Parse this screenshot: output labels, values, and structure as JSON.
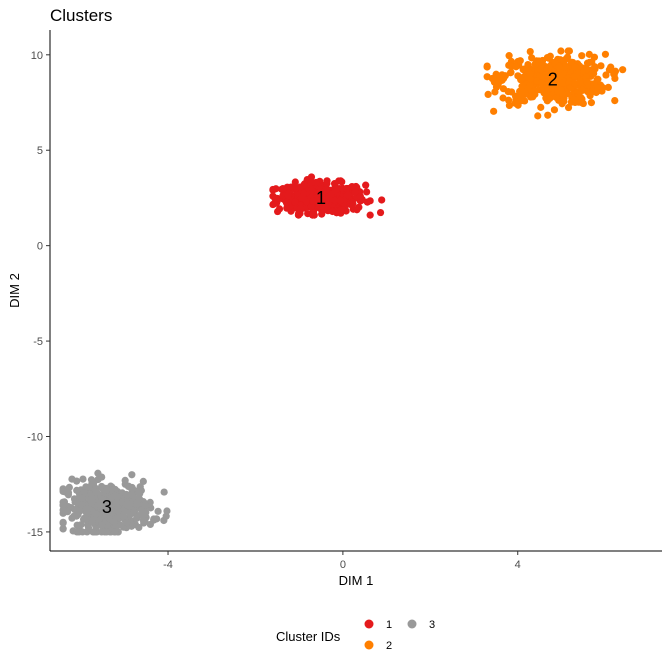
{
  "chart_data": {
    "type": "scatter",
    "title": "Clusters",
    "xlabel": "DIM 1",
    "ylabel": "DIM 2",
    "xlim": [
      -6.7,
      7.3
    ],
    "ylim": [
      -16.0,
      11.3
    ],
    "x_ticks": [
      -4,
      0,
      4
    ],
    "x_tick_labels": [
      "-4",
      "0",
      "4"
    ],
    "y_ticks": [
      -15,
      -10,
      -5,
      0,
      5,
      10
    ],
    "y_tick_labels": [
      "-15",
      "-10",
      "-5",
      "0",
      "5",
      "10"
    ],
    "grid": false,
    "legend": {
      "title": "Cluster IDs",
      "position": "bottom"
    },
    "series": [
      {
        "name": "1",
        "color": "#E41A1C",
        "center": [
          -0.5,
          2.5
        ],
        "x_range": [
          -1.6,
          1.0
        ],
        "y_range": [
          1.6,
          3.6
        ],
        "label": "1"
      },
      {
        "name": "2",
        "color": "#FF7F00",
        "center": [
          4.8,
          8.7
        ],
        "x_range": [
          3.3,
          6.4
        ],
        "y_range": [
          6.8,
          10.2
        ],
        "label": "2"
      },
      {
        "name": "3",
        "color": "#999999",
        "center": [
          -5.4,
          -13.7
        ],
        "x_range": [
          -6.4,
          -3.8
        ],
        "y_range": [
          -15.0,
          -11.6
        ],
        "label": "3"
      }
    ]
  }
}
